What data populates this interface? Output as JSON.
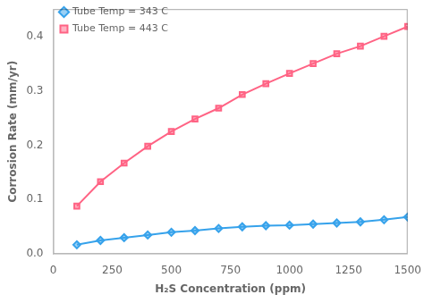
{
  "chart_data": {
    "type": "line",
    "xlabel": "H₂S Concentration (ppm)",
    "ylabel": "Corrosion Rate (mm/yr)",
    "x": [
      100,
      200,
      300,
      400,
      500,
      600,
      700,
      800,
      900,
      1000,
      1100,
      1200,
      1300,
      1400,
      1500
    ],
    "series": [
      {
        "name": "Tube Temp = 343 C",
        "marker": "diamond",
        "values": [
          0.017,
          0.025,
          0.03,
          0.035,
          0.04,
          0.043,
          0.047,
          0.05,
          0.052,
          0.053,
          0.055,
          0.057,
          0.059,
          0.063,
          0.068
        ]
      },
      {
        "name": "Tube Temp = 443 C",
        "marker": "square",
        "values": [
          0.088,
          0.133,
          0.167,
          0.198,
          0.225,
          0.248,
          0.268,
          0.293,
          0.313,
          0.332,
          0.35,
          0.368,
          0.382,
          0.4,
          0.418
        ]
      }
    ],
    "xlim": [
      0,
      1500
    ],
    "xticks": [
      0,
      250,
      500,
      750,
      1000,
      1250,
      1500
    ],
    "ylim": [
      0,
      0.45
    ],
    "yticks": [
      {
        "value": 0,
        "label": "0.0"
      },
      0.1,
      0.2,
      0.3,
      0.4
    ],
    "grid": false,
    "legend": "upper left"
  }
}
